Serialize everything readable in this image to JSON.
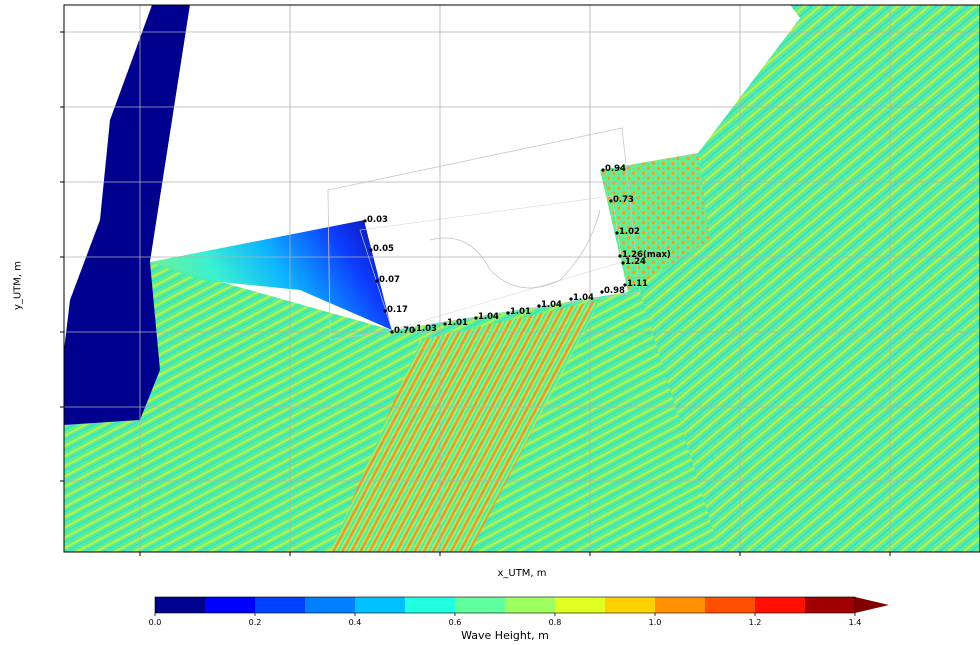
{
  "chart_data": {
    "type": "heatmap",
    "title": "",
    "xlabel": "x_UTM, m",
    "ylabel": "y_UTM, m",
    "grid": true,
    "colorbar": {
      "label": "Wave Height, m",
      "min": 0.0,
      "max": 1.4,
      "step": 0.1,
      "extend": "max",
      "tick_labels": [
        "0.0",
        "0.2",
        "0.4",
        "0.6",
        "0.8",
        "1.0",
        "1.2",
        "1.4"
      ],
      "colors": [
        "#00008f",
        "#0000ff",
        "#0040ff",
        "#0080ff",
        "#00c0ff",
        "#20ffdf",
        "#60ffa0",
        "#a0ff60",
        "#dfff20",
        "#ffd000",
        "#ff9000",
        "#ff5000",
        "#ff1000",
        "#a00000"
      ],
      "extend_color": "#800000"
    },
    "annotations": [
      {
        "label": "0.03",
        "value": 0.03
      },
      {
        "label": "0.05",
        "value": 0.05
      },
      {
        "label": "0.07",
        "value": 0.07
      },
      {
        "label": "0.17",
        "value": 0.17
      },
      {
        "label": "0.70",
        "value": 0.7
      },
      {
        "label": "1.03",
        "value": 1.03
      },
      {
        "label": "1.01",
        "value": 1.01
      },
      {
        "label": "1.04",
        "value": 1.04
      },
      {
        "label": "1.01",
        "value": 1.01
      },
      {
        "label": "1.04",
        "value": 1.04
      },
      {
        "label": "1.04",
        "value": 1.04
      },
      {
        "label": "0.98",
        "value": 0.98
      },
      {
        "label": "1.11",
        "value": 1.11
      },
      {
        "label": "1.24",
        "value": 1.24
      },
      {
        "label": "1.26(max)",
        "value": 1.26
      },
      {
        "label": "1.02",
        "value": 1.02
      },
      {
        "label": "0.73",
        "value": 0.73
      },
      {
        "label": "0.94",
        "value": 0.94
      }
    ]
  }
}
